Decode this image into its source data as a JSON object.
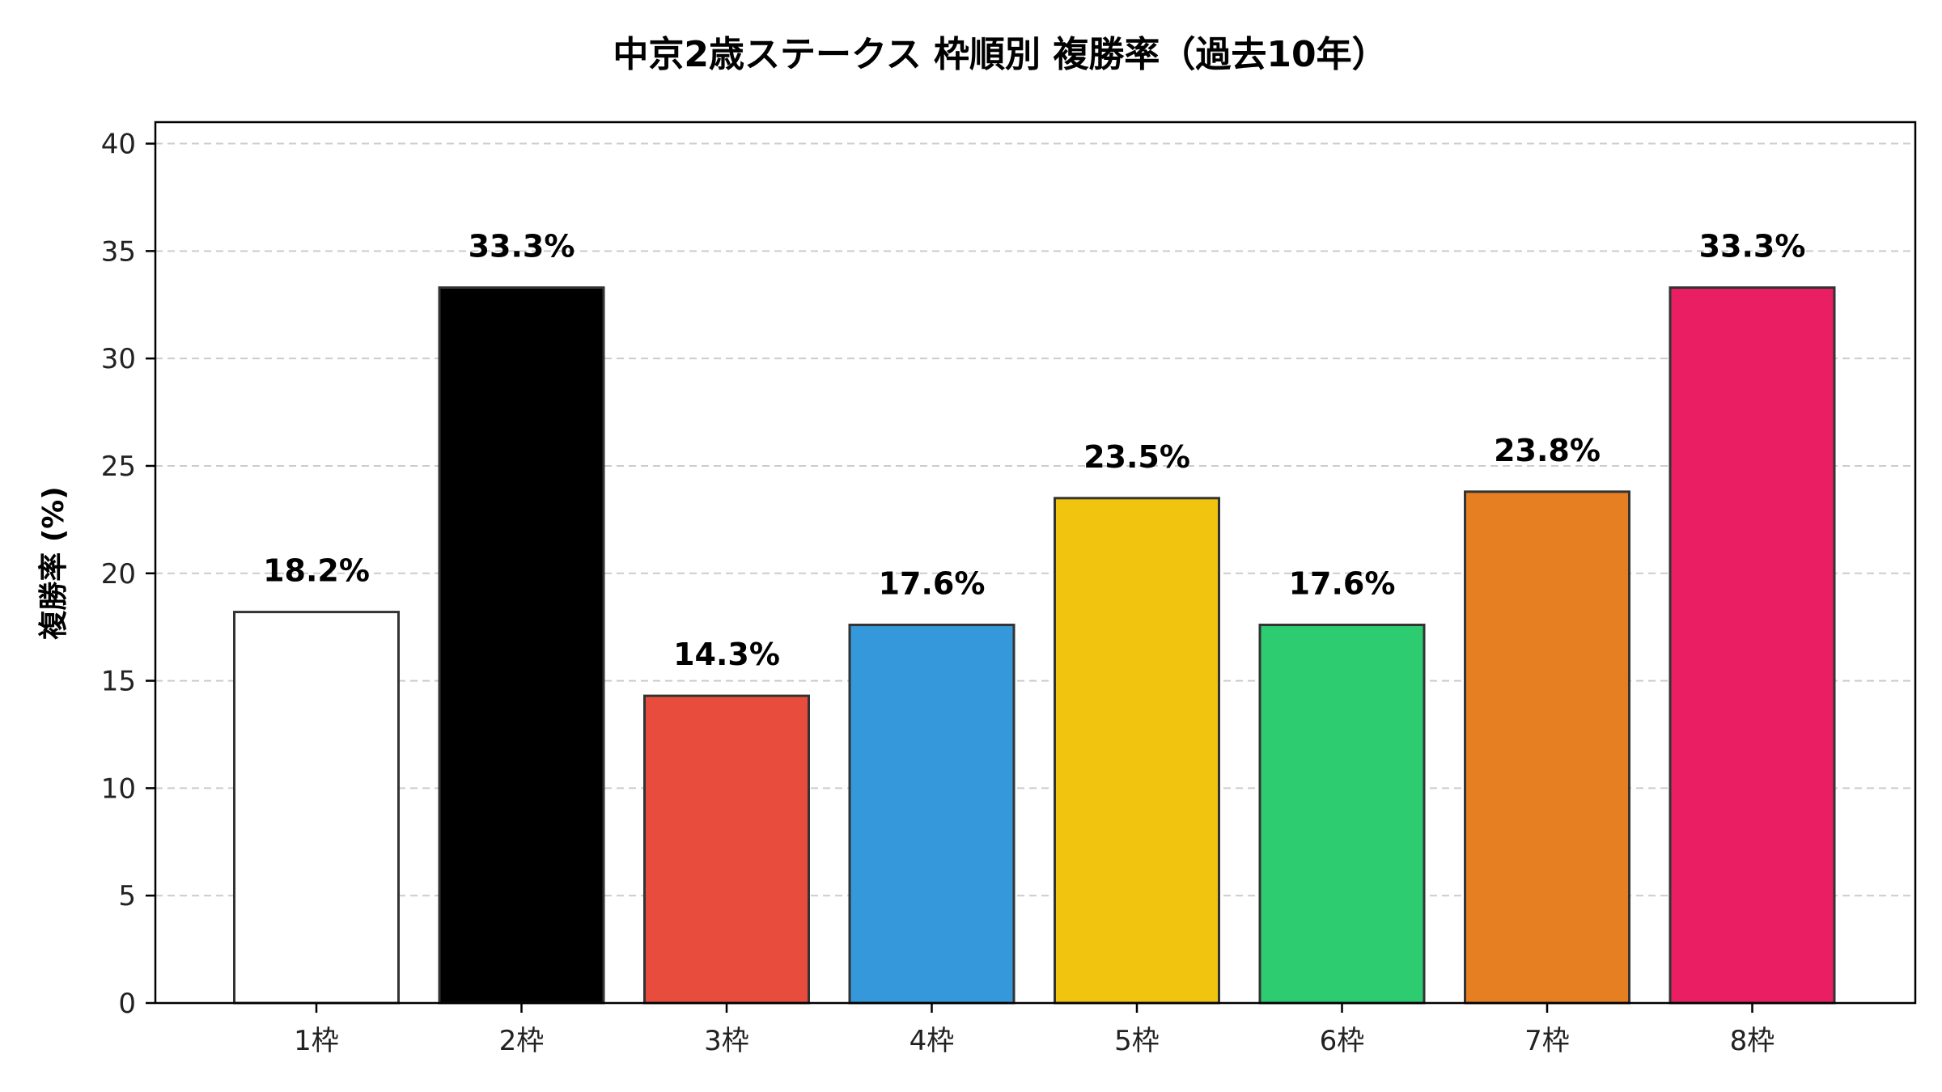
{
  "chart_data": {
    "type": "bar",
    "title": "中京2歳ステークス 枠順別 複勝率（過去10年）",
    "xlabel": "",
    "ylabel": "複勝率 (%)",
    "ylim": [
      0,
      41
    ],
    "yticks": [
      "0",
      "5",
      "10",
      "15",
      "20",
      "25",
      "30",
      "35",
      "40"
    ],
    "grid": true,
    "categories": [
      "1枠",
      "2枠",
      "3枠",
      "4枠",
      "5枠",
      "6枠",
      "7枠",
      "8枠"
    ],
    "values": [
      18.2,
      33.3,
      14.3,
      17.6,
      23.5,
      17.6,
      23.8,
      33.3
    ],
    "value_labels": [
      "18.2%",
      "33.3%",
      "14.3%",
      "17.6%",
      "23.5%",
      "17.6%",
      "23.8%",
      "33.3%"
    ],
    "colors": [
      "#ffffff",
      "#000000",
      "#e74c3c",
      "#3498db",
      "#f1c40f",
      "#2ecc71",
      "#e67e22",
      "#e91e63"
    ],
    "edge_color": "#333333"
  }
}
